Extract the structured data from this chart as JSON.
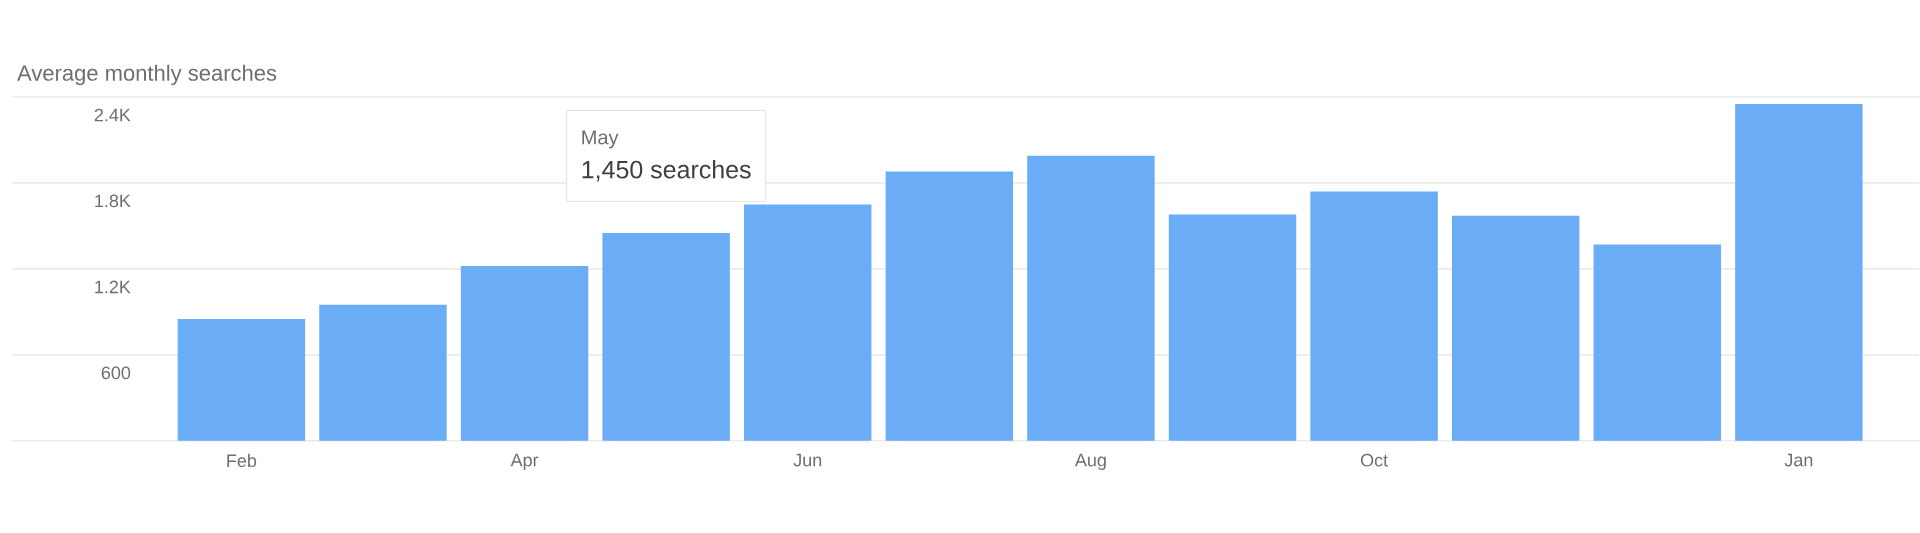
{
  "chart_data": {
    "type": "bar",
    "title": "Average monthly searches",
    "categories": [
      "Feb",
      null,
      "Apr",
      null,
      "Jun",
      null,
      "Aug",
      null,
      "Oct",
      null,
      null,
      "Jan"
    ],
    "values": [
      850,
      950,
      1220,
      1450,
      1650,
      1880,
      1990,
      1580,
      1740,
      1570,
      1370,
      2350
    ],
    "color": "#6aadf6",
    "ylim": [
      0,
      2400
    ],
    "yticks": [
      {
        "value": 0,
        "label": null
      },
      600,
      {
        "value": 1200,
        "label": "1.2K"
      },
      {
        "value": 1800,
        "label": "1.8K"
      },
      {
        "value": 2400,
        "label": "2.4K"
      }
    ],
    "grid": "y",
    "annotations": [
      "May",
      "1,450 searches"
    ]
  }
}
